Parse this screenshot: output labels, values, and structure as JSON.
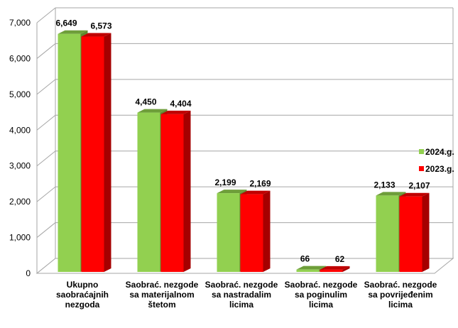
{
  "chart_data": {
    "type": "bar",
    "categories": [
      [
        "Ukupno",
        "saobraćajnih",
        "nezgoda"
      ],
      [
        "Saobrać. nezgode",
        "sa materijalnom",
        "štetom"
      ],
      [
        "Saobrać. nezgode",
        "sa nastradalim",
        "licima"
      ],
      [
        "Saobrać. nezgode",
        "sa poginulim",
        "licima"
      ],
      [
        "Saobrać. nezgode",
        "sa povrijeđenim",
        "licima"
      ]
    ],
    "series": [
      {
        "name": "2024.g.",
        "values": [
          6649,
          4450,
          2199,
          66,
          2133
        ],
        "labels": [
          "6,649",
          "4,450",
          "2,199",
          "66",
          "2,133"
        ],
        "color": "#92D050",
        "top_color": "#6E9E3A",
        "side_color": "#5E8A2E"
      },
      {
        "name": "2023.g.",
        "values": [
          6573,
          4404,
          2169,
          62,
          2107
        ],
        "labels": [
          "6,573",
          "4,404",
          "2,169",
          "62",
          "2,107"
        ],
        "color": "#FF0000",
        "top_color": "#C00000",
        "side_color": "#A50000"
      }
    ],
    "y_ticks": [
      "0",
      "1,000",
      "2,000",
      "3,000",
      "4,000",
      "5,000",
      "6,000",
      "7,000"
    ],
    "ylim": [
      0,
      7000
    ],
    "grid": true,
    "legend_position": "right",
    "three_d": true
  }
}
